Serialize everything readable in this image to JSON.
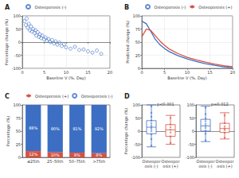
{
  "chart_data": [
    {
      "type": "scatter",
      "title": "A",
      "legend": "top",
      "grid": true,
      "xlabel": "Baseline V (%, Day)",
      "ylabel": "Percentage change (%)",
      "xlim": [
        0,
        20
      ],
      "xticks": [
        0,
        5,
        10,
        15,
        20
      ],
      "ylim": [
        -100,
        100
      ],
      "yticks": [
        -100,
        -50,
        0,
        50,
        100
      ],
      "x": [
        0.5,
        0.8,
        1,
        1.2,
        1.5,
        1.7,
        2,
        2.2,
        2.5,
        2.8,
        3,
        3.2,
        3.5,
        3.8,
        4,
        4.3,
        4.6,
        5,
        5.3,
        5.6,
        6,
        6.4,
        6.8,
        7.2,
        7.6,
        8,
        8.5,
        9,
        9.5,
        10,
        11,
        12,
        13,
        14,
        15,
        16,
        17,
        18
      ],
      "series": [
        {
          "name": "Osteoporosis (-)",
          "color": "#3c6fc4",
          "marker": "circle-open",
          "values": [
            80,
            65,
            90,
            55,
            70,
            45,
            60,
            40,
            50,
            35,
            45,
            25,
            38,
            20,
            30,
            15,
            25,
            10,
            18,
            5,
            12,
            0,
            8,
            -5,
            3,
            -10,
            -2,
            -15,
            -8,
            -20,
            -25,
            -18,
            -30,
            -28,
            -35,
            -40,
            -32,
            -45
          ]
        }
      ]
    },
    {
      "type": "line",
      "title": "B",
      "legend": "top",
      "grid": true,
      "xlabel": "Baseline V (%, Day)",
      "ylabel": "Predicted change (%)",
      "xlim": [
        0,
        20
      ],
      "xticks": [
        0,
        5,
        10,
        15,
        20
      ],
      "ylim": [
        0,
        100
      ],
      "yticks": [
        0,
        25,
        50,
        75,
        100
      ],
      "x": [
        0,
        1,
        2,
        3,
        4,
        5,
        6,
        8,
        10,
        12,
        14,
        16,
        18,
        20
      ],
      "series": [
        {
          "name": "Osteoporosis (-)",
          "color": "#3c6fc4",
          "values": [
            90,
            85,
            70,
            55,
            45,
            38,
            32,
            24,
            18,
            13,
            9,
            6,
            3,
            1
          ]
        },
        {
          "name": "Osteoporosis (+)",
          "color": "#d9503f",
          "values": [
            60,
            75,
            72,
            62,
            52,
            44,
            37,
            28,
            21,
            16,
            12,
            8,
            5,
            3
          ]
        }
      ]
    },
    {
      "type": "bar",
      "title": "C",
      "legend": "top",
      "stacked": true,
      "data_labels": true,
      "grid": false,
      "ylabel": "Percentage (%)",
      "categories": [
        "≤25th",
        "25–50th",
        "50–75th",
        ">75th"
      ],
      "ylim": [
        0,
        100
      ],
      "yticks": [
        0,
        25,
        50,
        75,
        100
      ],
      "series": [
        {
          "name": "Osteoporosis (+)",
          "color": "#d9503f",
          "values": [
            12,
            10,
            9,
            8
          ],
          "value_labels": [
            "12%",
            "10%",
            "9%",
            "8%"
          ]
        },
        {
          "name": "Osteoporosis (-)",
          "color": "#3c6fc4",
          "values": [
            88,
            90,
            91,
            92
          ],
          "value_labels": [
            "88%",
            "90%",
            "91%",
            "92%"
          ]
        }
      ]
    },
    {
      "type": "boxplot",
      "title": "D",
      "subtitle": "p<0.001",
      "grid": false,
      "ylabel": "Percentage change (%)",
      "categories": [
        "Osteoporosis (-)",
        "Osteoporosis (+)"
      ],
      "ylim": [
        -100,
        100
      ],
      "yticks": [
        -100,
        -50,
        0,
        50,
        100
      ],
      "series": [
        {
          "name": "Osteoporosis (-)",
          "color": "#3c6fc4",
          "box": [
            -60,
            -10,
            15,
            40,
            100
          ],
          "points": [
            -55,
            -30,
            -12,
            0,
            8,
            15,
            22,
            30,
            40,
            55,
            70,
            95
          ]
        },
        {
          "name": "Osteoporosis (+)",
          "color": "#d9503f",
          "box": [
            -50,
            -20,
            5,
            25,
            60
          ],
          "points": [
            -45,
            -20,
            -5,
            5,
            15,
            25,
            50
          ]
        }
      ]
    },
    {
      "type": "boxplot",
      "subtitle": "p=0.012",
      "grid": false,
      "categories": [
        "Osteoporosis (-)",
        "Osteoporosis (+)"
      ],
      "ylim": [
        -100,
        100
      ],
      "yticks": [
        -100,
        -50,
        0,
        50,
        100
      ],
      "series": [
        {
          "name": "Osteoporosis (-)",
          "color": "#3c6fc4",
          "box": [
            -40,
            0,
            20,
            45,
            95
          ],
          "points": [
            -35,
            -10,
            2,
            12,
            20,
            28,
            38,
            48,
            65,
            90
          ]
        },
        {
          "name": "Osteoporosis (+)",
          "color": "#d9503f",
          "box": [
            -30,
            -5,
            10,
            30,
            70
          ],
          "points": [
            -25,
            -6,
            4,
            10,
            18,
            30,
            60
          ]
        }
      ]
    }
  ]
}
